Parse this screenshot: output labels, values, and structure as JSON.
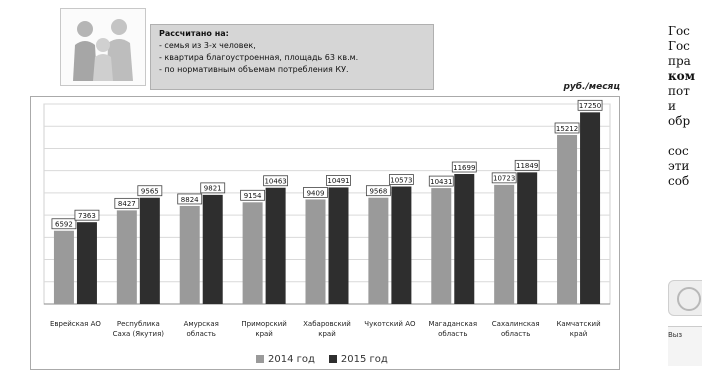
{
  "info": {
    "title": "Рассчитано на:",
    "lines": [
      "- семья из 3-х человек,",
      "- квартира благоустроенная, площадь 63 кв.м.",
      "- по нормативным объемам потребления КУ."
    ]
  },
  "units": "руб./месяц",
  "chart_data": {
    "type": "bar",
    "categories": [
      "Еврейская АО",
      "Республика Саха (Якутия)",
      "Амурская область",
      "Приморский край",
      "Хабаровский край",
      "Чукотский АО",
      "Магаданская область",
      "Сахалинская область",
      "Камчатский край"
    ],
    "category_lines": [
      [
        "Еврейская АО"
      ],
      [
        "Республика",
        "Саха (Якутия)"
      ],
      [
        "Амурская",
        "область"
      ],
      [
        "Приморский",
        "край"
      ],
      [
        "Хабаровский",
        "край"
      ],
      [
        "Чукотский АО"
      ],
      [
        "Магаданская",
        "область"
      ],
      [
        "Сахалинская",
        "область"
      ],
      [
        "Камчатский",
        "край"
      ]
    ],
    "series": [
      {
        "name": "2014 год",
        "color": "#9a9a9a",
        "values": [
          6592,
          8427,
          8824,
          9154,
          9409,
          9568,
          10431,
          10723,
          15212
        ]
      },
      {
        "name": "2015 год",
        "color": "#2e2e2e",
        "values": [
          7363,
          9565,
          9821,
          10463,
          10491,
          10573,
          11699,
          11849,
          17250
        ]
      }
    ],
    "ylim": [
      0,
      18000
    ],
    "grid": true,
    "legend": "bottom"
  },
  "side": {
    "lines": [
      {
        "t": "Гос",
        "b": false
      },
      {
        "t": "Гос",
        "b": false
      },
      {
        "t": "пра",
        "b": false
      },
      {
        "t": "ком",
        "b": true
      },
      {
        "t": "пот",
        "b": false
      },
      {
        "t": "и",
        "b": false
      },
      {
        "t": "обр",
        "b": false
      },
      {
        "t": "",
        "b": false
      },
      {
        "t": "сос",
        "b": false
      },
      {
        "t": "эти",
        "b": false
      },
      {
        "t": "соб",
        "b": false
      }
    ],
    "bottom_text": "Выз"
  }
}
